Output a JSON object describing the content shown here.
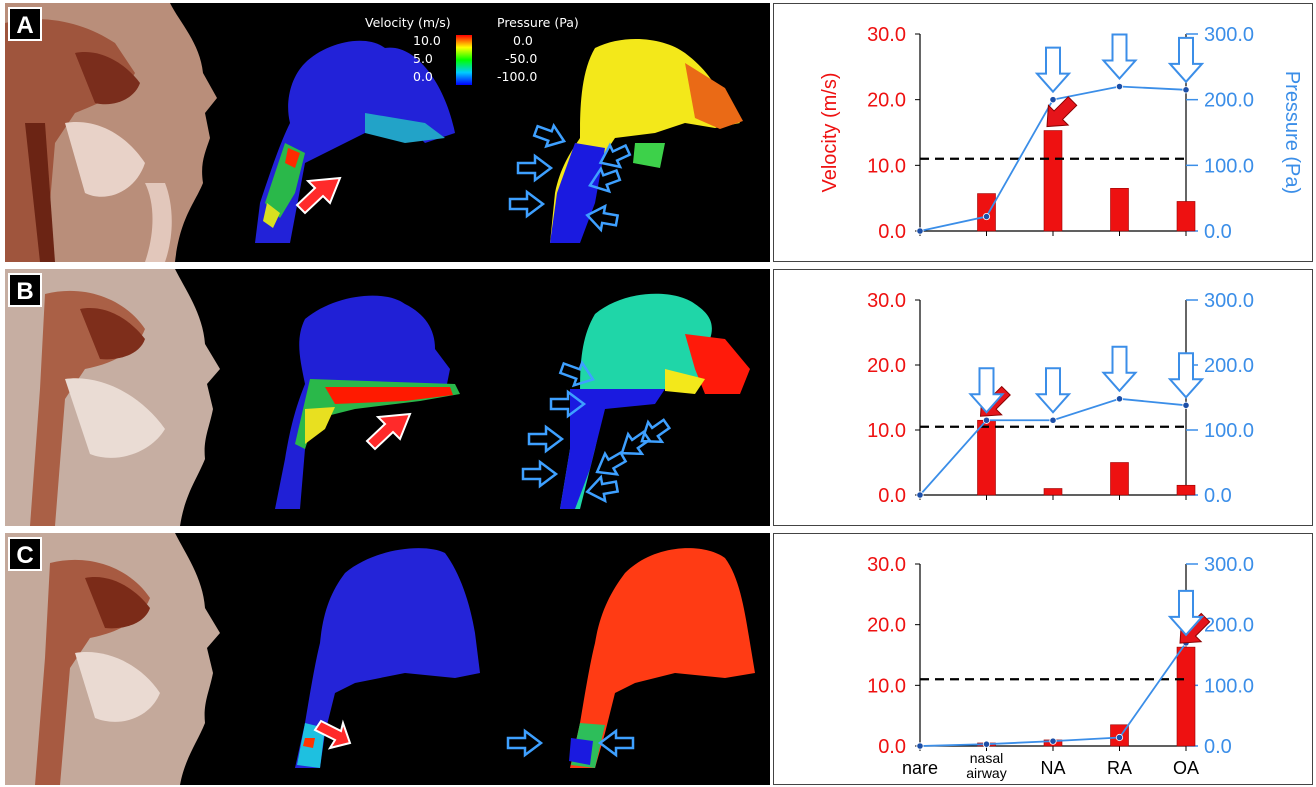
{
  "panels": [
    {
      "label": "A"
    },
    {
      "label": "B"
    },
    {
      "label": "C"
    }
  ],
  "legend": {
    "velocity_title": "Velocity (m/s)",
    "pressure_title": "Pressure (Pa)",
    "velocity_ticks": [
      "10.0",
      "5.0",
      "0.0"
    ],
    "pressure_ticks": [
      "0.0",
      "-50.0",
      "-100.0"
    ],
    "colors": [
      "#ff0000",
      "#ffff00",
      "#00ff00",
      "#0000ff"
    ]
  },
  "colors": {
    "bar": "#ee1111",
    "line": "#3b8ee8",
    "point": "#1c4fa8",
    "left_axis": "#ee1111",
    "right_axis": "#3b8ee8",
    "threshold": "#000000"
  },
  "chart_data": [
    {
      "type": "bar",
      "panel": "A",
      "categories": [
        "nare",
        "nasal airway",
        "NA",
        "RA",
        "OA"
      ],
      "ylabel": "Velocity (m/s)",
      "y2label": "Pressure (Pa)",
      "ylim": [
        0,
        30
      ],
      "y2lim": [
        0,
        300
      ],
      "yticks": [
        "0.0",
        "10.0",
        "20.0",
        "30.0"
      ],
      "y2ticks": [
        "0.0",
        "100.0",
        "200.0",
        "300.0"
      ],
      "show_category_labels": false,
      "threshold": 11,
      "series": [
        {
          "name": "Velocity (m/s)",
          "kind": "bar",
          "values": [
            0,
            5.7,
            15.3,
            6.5,
            4.5
          ]
        },
        {
          "name": "Pressure (Pa)",
          "kind": "line",
          "values": [
            0,
            22,
            200,
            220,
            215
          ]
        }
      ],
      "red_arrow_index": 2,
      "blue_arrow_indices": [
        2,
        3,
        4
      ]
    },
    {
      "type": "bar",
      "panel": "B",
      "categories": [
        "nare",
        "nasal airway",
        "NA",
        "RA",
        "OA"
      ],
      "ylim": [
        0,
        30
      ],
      "y2lim": [
        0,
        300
      ],
      "yticks": [
        "0.0",
        "10.0",
        "20.0",
        "30.0"
      ],
      "y2ticks": [
        "0.0",
        "100.0",
        "200.0",
        "300.0"
      ],
      "show_category_labels": false,
      "threshold": 10.5,
      "series": [
        {
          "name": "Velocity (m/s)",
          "kind": "bar",
          "values": [
            0,
            11.5,
            1.0,
            5.0,
            1.5
          ]
        },
        {
          "name": "Pressure (Pa)",
          "kind": "line",
          "values": [
            0,
            115,
            115,
            148,
            138
          ]
        }
      ],
      "red_arrow_index": 1,
      "blue_arrow_indices": [
        1,
        2,
        3,
        4
      ]
    },
    {
      "type": "bar",
      "panel": "C",
      "categories": [
        "nare",
        "nasal airway",
        "NA",
        "RA",
        "OA"
      ],
      "ylim": [
        0,
        30
      ],
      "y2lim": [
        0,
        300
      ],
      "yticks": [
        "0.0",
        "10.0",
        "20.0",
        "30.0"
      ],
      "y2ticks": [
        "0.0",
        "100.0",
        "200.0",
        "300.0"
      ],
      "show_category_labels": true,
      "threshold": 11,
      "series": [
        {
          "name": "Velocity (m/s)",
          "kind": "bar",
          "values": [
            0,
            0.5,
            1.0,
            3.5,
            16.3
          ]
        },
        {
          "name": "Pressure (Pa)",
          "kind": "line",
          "values": [
            0,
            3,
            8,
            14,
            170
          ]
        }
      ],
      "red_arrow_index": 4,
      "blue_arrow_indices": [
        4
      ]
    }
  ]
}
